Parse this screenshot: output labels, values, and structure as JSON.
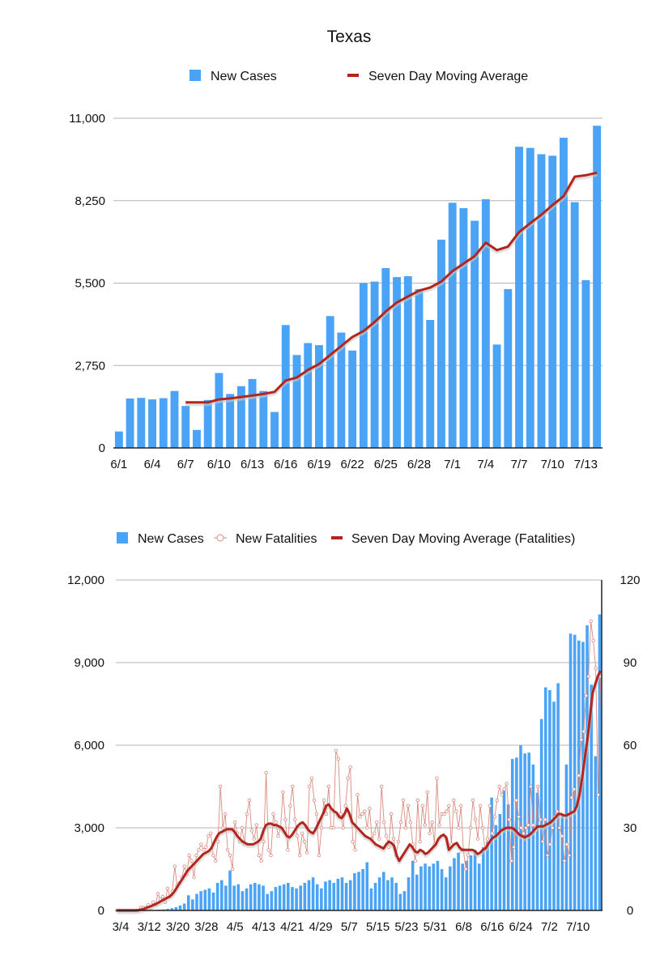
{
  "colors": {
    "bar": "#4aa3f4",
    "line": "#b3261e",
    "marker": "#d98a80",
    "grid": "#b5b5b5",
    "axis": "#222222"
  },
  "chart_data": [
    {
      "type": "bar",
      "title": "Texas",
      "legend": [
        "New Cases",
        "Seven Day Moving Average"
      ],
      "legend_position": "top",
      "ylim": [
        0,
        11000
      ],
      "yticks": [
        0,
        2750,
        5500,
        8250,
        11000
      ],
      "ytick_labels": [
        "0",
        "2,750",
        "5,500",
        "8,250",
        "11,000"
      ],
      "categories": [
        "6/1",
        "6/2",
        "6/3",
        "6/4",
        "6/5",
        "6/6",
        "6/7",
        "6/8",
        "6/9",
        "6/10",
        "6/11",
        "6/12",
        "6/13",
        "6/14",
        "6/15",
        "6/16",
        "6/17",
        "6/18",
        "6/19",
        "6/20",
        "6/21",
        "6/22",
        "6/23",
        "6/24",
        "6/25",
        "6/26",
        "6/27",
        "6/28",
        "6/29",
        "6/30",
        "7/1",
        "7/2",
        "7/3",
        "7/4",
        "7/5",
        "7/6",
        "7/7",
        "7/8",
        "7/9",
        "7/10",
        "7/11",
        "7/12",
        "7/13",
        "7/14"
      ],
      "xtick_labels": [
        "6/1",
        "6/4",
        "6/7",
        "6/10",
        "6/13",
        "6/16",
        "6/19",
        "6/22",
        "6/25",
        "6/28",
        "7/1",
        "7/4",
        "7/7",
        "7/10",
        "7/13"
      ],
      "series": [
        {
          "name": "New Cases",
          "kind": "bar",
          "values": [
            550,
            1650,
            1670,
            1620,
            1660,
            1900,
            1400,
            600,
            1600,
            2500,
            1800,
            2060,
            2300,
            1900,
            1200,
            4100,
            3100,
            3500,
            3430,
            4400,
            3850,
            3250,
            5500,
            5550,
            6000,
            5700,
            5730,
            5300,
            4270,
            6950,
            8180,
            8000,
            7580,
            8300,
            3450,
            5300,
            10050,
            10010,
            9800,
            9750,
            10350,
            8200,
            5600,
            10750
          ]
        },
        {
          "name": "Seven Day Moving Average",
          "kind": "line",
          "values": [
            null,
            null,
            null,
            null,
            null,
            null,
            1520,
            1520,
            1520,
            1620,
            1650,
            1700,
            1750,
            1800,
            1870,
            2250,
            2350,
            2600,
            2800,
            3100,
            3400,
            3700,
            3900,
            4200,
            4550,
            4850,
            5050,
            5250,
            5350,
            5550,
            5900,
            6150,
            6400,
            6850,
            6600,
            6720,
            7200,
            7500,
            7780,
            8100,
            8400,
            9050,
            9100,
            9180
          ]
        }
      ]
    },
    {
      "type": "bar",
      "legend": [
        "New Cases",
        "New Fatalities",
        "Seven Day Moving Average (Fatalities)"
      ],
      "legend_position": "top",
      "ylim": [
        0,
        12000
      ],
      "yticks": [
        0,
        3000,
        6000,
        9000,
        12000
      ],
      "ytick_labels": [
        "0",
        "3,000",
        "6,000",
        "9,000",
        "12,000"
      ],
      "y2lim": [
        0,
        120
      ],
      "y2ticks": [
        0,
        30,
        60,
        90,
        120
      ],
      "y2tick_labels": [
        "0",
        "30",
        "60",
        "90",
        "120"
      ],
      "xtick_labels": [
        "3/4",
        "3/12",
        "3/20",
        "3/28",
        "4/5",
        "4/13",
        "4/21",
        "4/29",
        "5/7",
        "5/15",
        "5/23",
        "5/31",
        "6/8",
        "6/16",
        "6/24",
        "7/2",
        "7/10"
      ],
      "series": [
        {
          "name": "New Cases",
          "kind": "bar",
          "axis": "left",
          "values": [
            0,
            0,
            0,
            0,
            0,
            0,
            0,
            5,
            10,
            15,
            30,
            40,
            60,
            80,
            120,
            180,
            250,
            550,
            400,
            600,
            700,
            750,
            800,
            650,
            1000,
            1100,
            900,
            1450,
            900,
            950,
            700,
            800,
            950,
            1000,
            950,
            900,
            600,
            700,
            850,
            900,
            950,
            1000,
            850,
            800,
            900,
            1000,
            1100,
            1200,
            950,
            800,
            1050,
            1100,
            1000,
            1150,
            1200,
            1000,
            1100,
            1350,
            1400,
            1500,
            1750,
            800,
            1000,
            1200,
            1400,
            1100,
            1200,
            1000,
            600,
            700,
            1200,
            1800,
            1300,
            1600,
            1700,
            1600,
            1700,
            1800,
            1500,
            1200,
            1600,
            1900,
            2100,
            1700,
            1800,
            2000,
            2200,
            1700,
            2300,
            2500,
            4100,
            3100,
            3500,
            4400,
            3850,
            5500,
            5550,
            6000,
            5700,
            5730,
            5300,
            4270,
            6950,
            8100,
            8000,
            7580,
            8250,
            3450,
            5300,
            10050,
            10010,
            9800,
            9750,
            10350,
            8200,
            5600,
            10750
          ]
        },
        {
          "name": "New Fatalities",
          "kind": "scatter-line",
          "axis": "right",
          "values": [
            0,
            0,
            0,
            0,
            0,
            0,
            0,
            0,
            0,
            0,
            1,
            1,
            1,
            2,
            1,
            3,
            2,
            6,
            4,
            5,
            3,
            8,
            5,
            7,
            16,
            9,
            10,
            12,
            16,
            13,
            20,
            18,
            12,
            20,
            22,
            24,
            22,
            23,
            27,
            28,
            20,
            18,
            25,
            45,
            30,
            35,
            22,
            20,
            15,
            32,
            28,
            25,
            30,
            24,
            35,
            40,
            29,
            26,
            31,
            20,
            18,
            25,
            50,
            22,
            20,
            35,
            32,
            27,
            30,
            43,
            33,
            22,
            38,
            45,
            33,
            27,
            20,
            28,
            25,
            21,
            45,
            48,
            40,
            35,
            20,
            30,
            40,
            35,
            45,
            30,
            30,
            58,
            55,
            35,
            30,
            38,
            48,
            52,
            25,
            22,
            42,
            34,
            35,
            36,
            30,
            37,
            26,
            28,
            32,
            26,
            45,
            32,
            27,
            23,
            35,
            26,
            20,
            25,
            32,
            40,
            30,
            38,
            32,
            24,
            18,
            40,
            25,
            38,
            31,
            43,
            28,
            32,
            24,
            48,
            31,
            35,
            35,
            36,
            38,
            24,
            40,
            36,
            30,
            38,
            22,
            15,
            20,
            30,
            40,
            33,
            26,
            38,
            30,
            22,
            26,
            38,
            28,
            34,
            40,
            45,
            42,
            44,
            46,
            33,
            18,
            23,
            40,
            34,
            30,
            28,
            30,
            31,
            45,
            31,
            29,
            45,
            33,
            25,
            33,
            20,
            24,
            30,
            34,
            36,
            30,
            27,
            18,
            24,
            20,
            41,
            44,
            37,
            49,
            62,
            65,
            78,
            85,
            105,
            98,
            88,
            42,
            85
          ]
        },
        {
          "name": "Seven Day Moving Average (Fatalities)",
          "kind": "line",
          "axis": "right",
          "values": [
            0,
            0,
            0,
            0,
            0,
            0,
            0,
            0,
            0.1,
            0.3,
            0.5,
            0.8,
            1.2,
            1.6,
            2,
            2.4,
            2.9,
            3.5,
            4,
            4.5,
            5,
            5.8,
            7,
            8.5,
            10,
            11.5,
            13,
            14.5,
            15.5,
            16.5,
            17.5,
            18.5,
            19.5,
            20.5,
            21,
            21.5,
            22.5,
            24.5,
            26.5,
            28,
            28.5,
            29,
            29.5,
            29.5,
            29.5,
            28.5,
            27,
            26,
            25,
            24.5,
            24,
            24,
            24,
            24.5,
            25,
            26,
            29,
            31,
            31.5,
            31.5,
            31,
            31,
            30.5,
            30,
            28.5,
            27,
            26.5,
            27.5,
            29,
            30.5,
            31.5,
            32,
            31,
            29.5,
            28.5,
            28,
            29.5,
            31.5,
            33.5,
            35.5,
            38,
            38.5,
            37,
            36,
            35.5,
            34,
            33.5,
            35,
            37,
            35,
            32,
            31,
            30,
            29,
            28,
            27,
            26.5,
            26,
            25,
            24,
            23.5,
            23,
            22.5,
            24,
            25,
            24.5,
            23.5,
            20,
            18,
            19.5,
            21,
            22.5,
            24,
            23,
            21.5,
            21,
            22,
            21.5,
            20.5,
            21,
            22,
            23,
            24,
            26,
            27,
            27.5,
            26.5,
            22,
            23,
            24,
            24.5,
            23,
            22,
            22,
            22,
            22,
            22,
            21.5,
            20.5,
            21,
            22,
            22.5,
            24,
            25.5,
            26.5,
            27,
            28,
            29,
            29.5,
            30,
            30,
            30,
            29.5,
            28.5,
            27.5,
            27,
            26.5,
            27,
            27.5,
            28.5,
            29.5,
            30.5,
            30.5,
            30.5,
            31,
            31.5,
            32,
            33,
            34,
            35,
            35,
            34.5,
            34.5,
            35,
            35.5,
            36,
            38,
            42,
            48,
            55,
            62,
            70,
            79,
            82,
            85,
            87
          ]
        }
      ]
    }
  ]
}
